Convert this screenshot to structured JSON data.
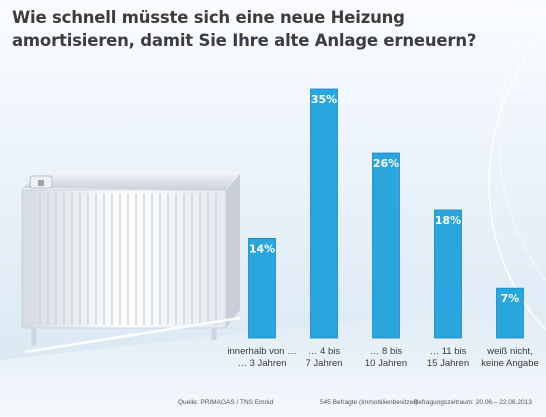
{
  "header": {
    "title_line1": "Wie schnell müsste sich eine neue Heizung",
    "title_line2": "amortisieren, damit Sie Ihre alte Anlage erneuern?"
  },
  "footer": {
    "source": "Quelle: PRIMAGAS / TNS Emnid",
    "sample": "545 Befragte (Immobilienbesitzer)",
    "period": "Befragungszeitraum: 20.06.– 22.06.2013"
  },
  "colors": {
    "bar_fill": "#29a6de",
    "bar_edge": "#1b87c2",
    "background_top": "#fbfdff",
    "background_bottom": "#d7e6f2",
    "title_text": "#3d3d3d"
  },
  "decor": {
    "illustration": "radiator-image"
  },
  "chart_data": {
    "type": "bar",
    "categories": [
      [
        "innerhalb von …",
        "… 3 Jahren"
      ],
      [
        "… 4 bis",
        "7 Jahren"
      ],
      [
        "… 8 bis",
        "10 Jahren"
      ],
      [
        "… 11 bis",
        "15 Jahren"
      ],
      [
        "weiß nicht,",
        "keine Angabe"
      ]
    ],
    "values": [
      14,
      35,
      26,
      18,
      7
    ],
    "value_labels": [
      "14%",
      "35%",
      "26%",
      "18%",
      "7%"
    ],
    "unit": "%",
    "ylim": [
      0,
      35
    ],
    "grid": false,
    "legend": "none"
  }
}
